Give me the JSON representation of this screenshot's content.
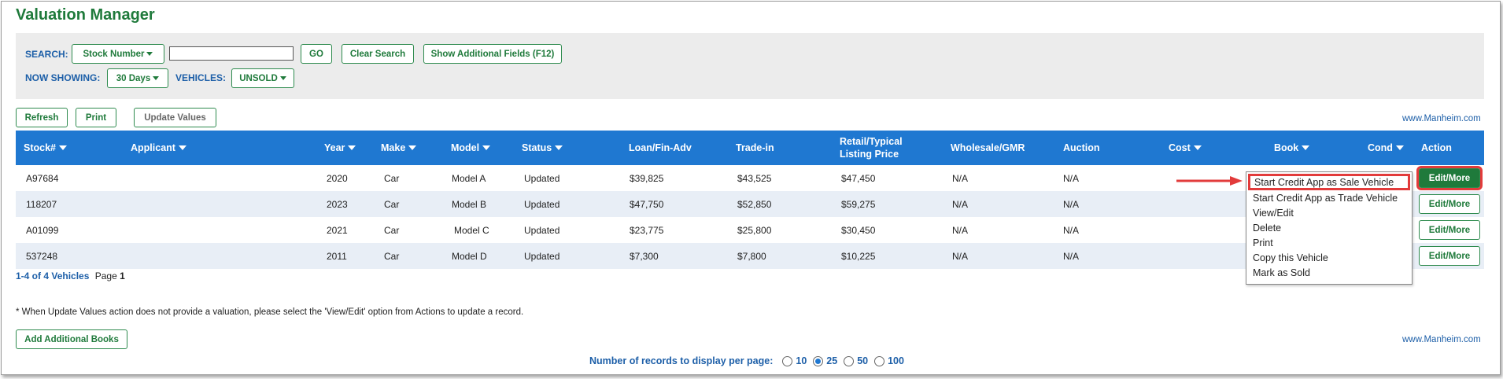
{
  "page_title": "Valuation Manager",
  "search": {
    "label": "SEARCH:",
    "field_dropdown": "Stock Number",
    "input_value": "",
    "go": "GO",
    "clear": "Clear Search",
    "additional": "Show Additional Fields (F12)"
  },
  "filters": {
    "now_showing_label": "NOW SHOWING:",
    "now_showing_value": "30 Days",
    "vehicles_label": "VEHICLES:",
    "vehicles_value": "UNSOLD"
  },
  "toolbar": {
    "refresh": "Refresh",
    "print": "Print",
    "update_values": "Update Values"
  },
  "manheim_link": "www.Manheim.com",
  "columns": [
    "Stock#",
    "Applicant",
    "Year",
    "Make",
    "Model",
    "Status",
    "Loan/Fin-Adv",
    "Trade-in",
    "Retail/Typical",
    "Listing Price",
    "Wholesale/GMR",
    "Auction",
    "Cost",
    "Book",
    "Cond",
    "Action"
  ],
  "rows": [
    {
      "stock": "A97684",
      "applicant": "",
      "year": "2020",
      "make": "Car",
      "model": "Model A",
      "status": "Updated",
      "loan": "$39,825",
      "trade": "$43,525",
      "retail": "$47,450",
      "wholesale": "N/A",
      "auction": "N/A",
      "action": "Edit/More"
    },
    {
      "stock": "118207",
      "applicant": "",
      "year": "2023",
      "make": "Car",
      "model": "Model B",
      "status": "Updated",
      "loan": "$47,750",
      "trade": "$52,850",
      "retail": "$59,275",
      "wholesale": "N/A",
      "auction": "N/A",
      "action": "Edit/More"
    },
    {
      "stock": "A01099",
      "applicant": "",
      "year": "2021",
      "make": "Car",
      "model": "Model C",
      "status": "Updated",
      "loan": "$23,775",
      "trade": "$25,800",
      "retail": "$30,450",
      "wholesale": "N/A",
      "auction": "N/A",
      "action": "Edit/More"
    },
    {
      "stock": "537248",
      "applicant": "",
      "year": "2011",
      "make": "Car",
      "model": "Model D",
      "status": "Updated",
      "loan": "$7,300",
      "trade": "$7,800",
      "retail": "$10,225",
      "wholesale": "N/A",
      "auction": "N/A",
      "action": "Edit/More"
    }
  ],
  "record_count": "1-4 of 4 Vehicles",
  "page_label": "Page",
  "page_number": "1",
  "note": "* When Update Values action does not provide a valuation, please select the 'View/Edit' option from Actions to update a record.",
  "add_books": "Add Additional Books",
  "action_menu": [
    "Start Credit App as Sale Vehicle",
    "Start Credit App as Trade Vehicle",
    "View/Edit",
    "Delete",
    "Print",
    "Copy this Vehicle",
    "Mark as Sold"
  ],
  "per_page": {
    "label": "Number of records to display per page:",
    "options": [
      "10",
      "25",
      "50",
      "100"
    ],
    "selected": "25"
  },
  "colors": {
    "title_green": "#1f7a3b",
    "header_blue": "#1f78d1",
    "label_blue": "#1d5fa8",
    "highlight_red": "#e23b3b"
  }
}
